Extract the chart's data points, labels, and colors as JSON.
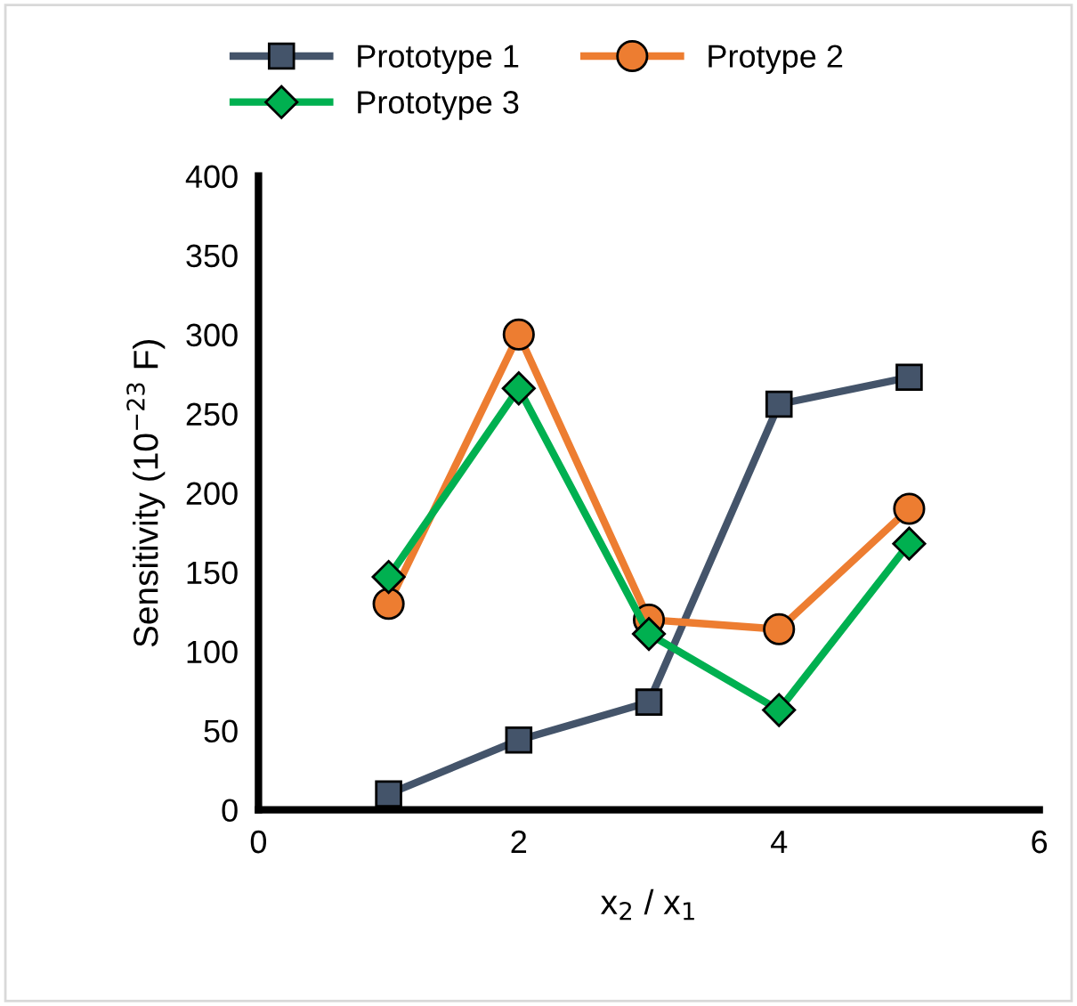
{
  "chart_data": {
    "type": "line",
    "xlabel": "x$_{2}$ / x$_{1}$",
    "ylabel": "Sensitivity (10$^{−23}$ F)",
    "x": [
      1,
      2,
      3,
      4,
      5
    ],
    "series": [
      {
        "name": "Prototype 1",
        "color": "#44546a",
        "marker": "square",
        "values": [
          10,
          44,
          68,
          256,
          273
        ]
      },
      {
        "name": "Protype 2",
        "color": "#ed7d31",
        "marker": "circle",
        "values": [
          130,
          300,
          120,
          114,
          190
        ]
      },
      {
        "name": "Prototype 3",
        "color": "#00b050",
        "marker": "diamond",
        "values": [
          147,
          266,
          111,
          63,
          168
        ]
      }
    ],
    "xlim": [
      0,
      6
    ],
    "xticks": [
      0,
      2,
      4,
      6
    ],
    "ylim": [
      0,
      400
    ],
    "yticks": [
      0,
      50,
      100,
      150,
      200,
      250,
      300,
      350,
      400
    ],
    "grid": false,
    "legend": "top",
    "line_style": "solid"
  }
}
